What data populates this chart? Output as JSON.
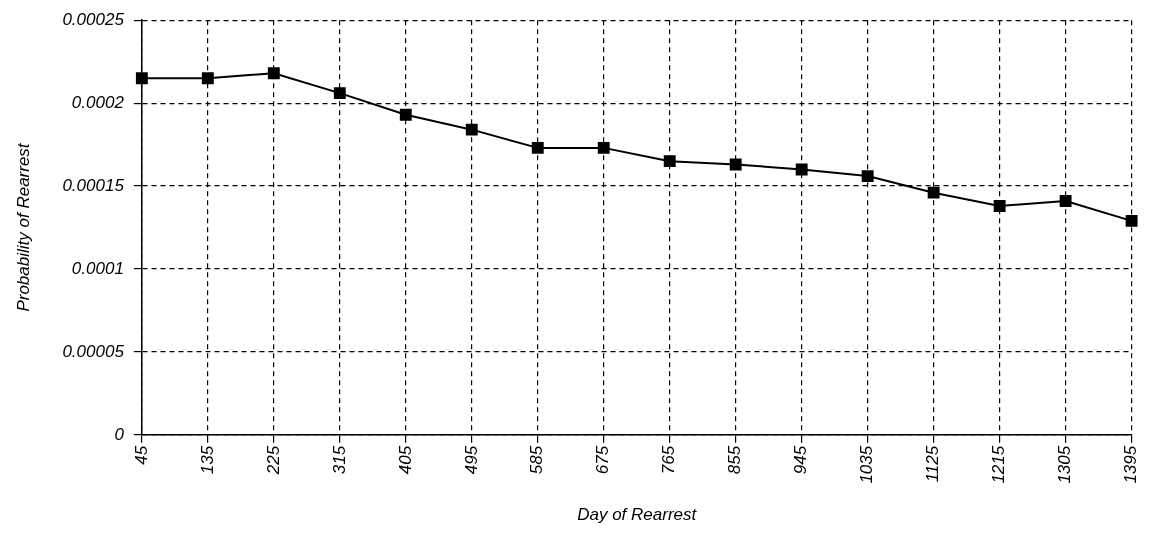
{
  "chart_data": {
    "type": "line",
    "xlabel": "Day of Rearrest",
    "ylabel": "Probability of Rearrest",
    "categories": [
      "45",
      "135",
      "225",
      "315",
      "405",
      "495",
      "585",
      "675",
      "765",
      "855",
      "945",
      "1035",
      "1125",
      "1215",
      "1305",
      "1395"
    ],
    "series": [
      {
        "color": "#000000",
        "values": [
          0.000215,
          0.000215,
          0.000218,
          0.000206,
          0.000193,
          0.000184,
          0.000173,
          0.000173,
          0.000165,
          0.000163,
          0.00016,
          0.000156,
          0.000146,
          0.000138,
          0.000141,
          0.000129
        ]
      }
    ],
    "ylim": [
      0,
      0.00025
    ],
    "yticks": [
      0,
      {
        "value": 5e-05,
        "label": "0.00005"
      },
      0.0001,
      0.00015,
      0.0002,
      0.00025
    ],
    "grid": true,
    "legend": false,
    "marker": "square",
    "line_style": "solid"
  }
}
